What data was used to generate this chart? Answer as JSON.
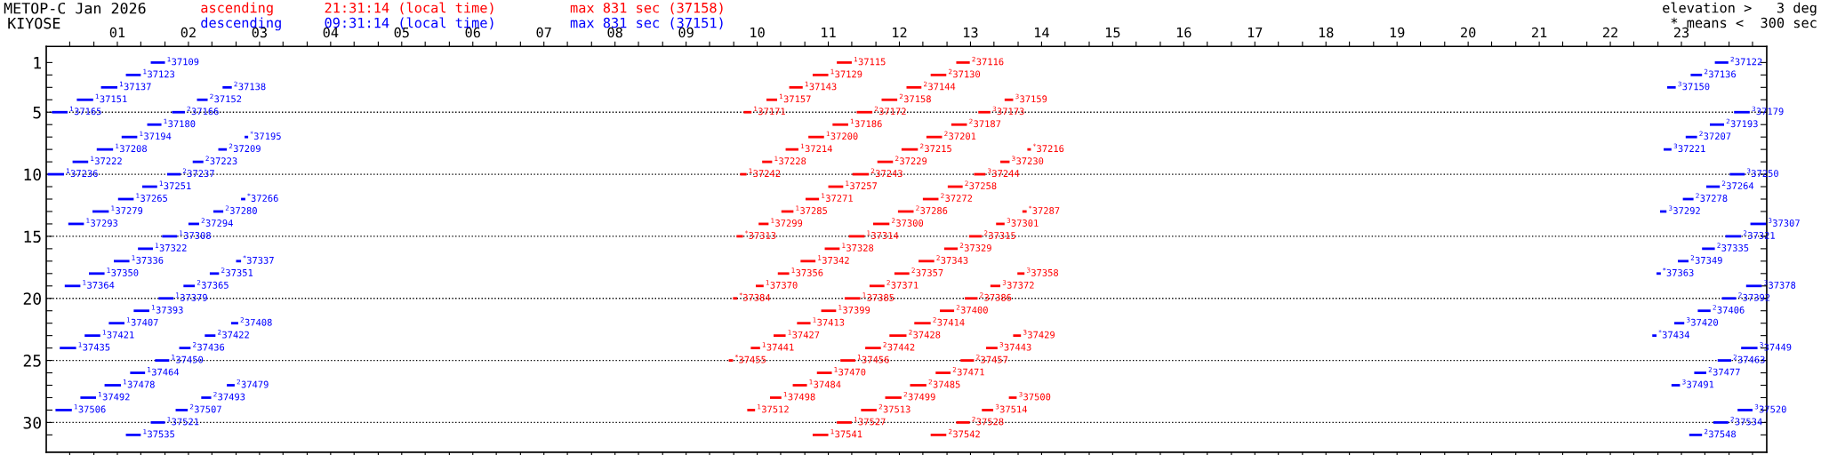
{
  "chart_data": {
    "type": "bar",
    "orientation": "horizontal",
    "title": "METOP-C Jan 2026",
    "subtitle": "KIYOSE",
    "legend": false,
    "grid": false,
    "xlim": [
      0,
      24.2
    ],
    "ylim": [
      32.4,
      -0.3
    ],
    "xticks": [
      {
        "value": 0.33,
        "label": null
      },
      {
        "value": 0.67,
        "label": null
      },
      {
        "value": 1,
        "label": "01"
      },
      {
        "value": 1.33,
        "label": null
      },
      {
        "value": 1.67,
        "label": null
      },
      {
        "value": 2,
        "label": "02"
      },
      {
        "value": 2.33,
        "label": null
      },
      {
        "value": 2.67,
        "label": null
      },
      {
        "value": 3,
        "label": "03"
      },
      {
        "value": 3.33,
        "label": null
      },
      {
        "value": 3.67,
        "label": null
      },
      {
        "value": 4,
        "label": "04"
      },
      {
        "value": 4.33,
        "label": null
      },
      {
        "value": 4.67,
        "label": null
      },
      {
        "value": 5,
        "label": "05"
      },
      {
        "value": 5.33,
        "label": null
      },
      {
        "value": 5.67,
        "label": null
      },
      {
        "value": 6,
        "label": "06"
      },
      {
        "value": 6.33,
        "label": null
      },
      {
        "value": 6.67,
        "label": null
      },
      {
        "value": 7,
        "label": "07"
      },
      {
        "value": 7.33,
        "label": null
      },
      {
        "value": 7.67,
        "label": null
      },
      {
        "value": 8,
        "label": "08"
      },
      {
        "value": 8.33,
        "label": null
      },
      {
        "value": 8.67,
        "label": null
      },
      {
        "value": 9,
        "label": "09"
      },
      {
        "value": 9.33,
        "label": null
      },
      {
        "value": 9.67,
        "label": null
      },
      {
        "value": 10,
        "label": "10"
      },
      {
        "value": 10.33,
        "label": null
      },
      {
        "value": 10.67,
        "label": null
      },
      {
        "value": 11,
        "label": "11"
      },
      {
        "value": 11.33,
        "label": null
      },
      {
        "value": 11.67,
        "label": null
      },
      {
        "value": 12,
        "label": "12"
      },
      {
        "value": 12.33,
        "label": null
      },
      {
        "value": 12.67,
        "label": null
      },
      {
        "value": 13,
        "label": "13"
      },
      {
        "value": 13.33,
        "label": null
      },
      {
        "value": 13.67,
        "label": null
      },
      {
        "value": 14,
        "label": "14"
      },
      {
        "value": 14.33,
        "label": null
      },
      {
        "value": 14.67,
        "label": null
      },
      {
        "value": 15,
        "label": "15"
      },
      {
        "value": 15.33,
        "label": null
      },
      {
        "value": 15.67,
        "label": null
      },
      {
        "value": 16,
        "label": "16"
      },
      {
        "value": 16.33,
        "label": null
      },
      {
        "value": 16.67,
        "label": null
      },
      {
        "value": 17,
        "label": "17"
      },
      {
        "value": 17.33,
        "label": null
      },
      {
        "value": 17.67,
        "label": null
      },
      {
        "value": 18,
        "label": "18"
      },
      {
        "value": 18.33,
        "label": null
      },
      {
        "value": 18.67,
        "label": null
      },
      {
        "value": 19,
        "label": "19"
      },
      {
        "value": 19.33,
        "label": null
      },
      {
        "value": 19.67,
        "label": null
      },
      {
        "value": 20,
        "label": "20"
      },
      {
        "value": 20.33,
        "label": null
      },
      {
        "value": 20.67,
        "label": null
      },
      {
        "value": 21,
        "label": "21"
      },
      {
        "value": 21.33,
        "label": null
      },
      {
        "value": 21.67,
        "label": null
      },
      {
        "value": 22,
        "label": "22"
      },
      {
        "value": 22.33,
        "label": null
      },
      {
        "value": 22.67,
        "label": null
      },
      {
        "value": 23,
        "label": "23"
      },
      {
        "value": 23.33,
        "label": null
      },
      {
        "value": 23.67,
        "label": null
      },
      {
        "value": 24,
        "label": null
      }
    ],
    "yticks": [
      1,
      {
        "value": 2,
        "label": null
      },
      {
        "value": 3,
        "label": null
      },
      {
        "value": 4,
        "label": null
      },
      5,
      {
        "value": 6,
        "label": null
      },
      {
        "value": 7,
        "label": null
      },
      {
        "value": 8,
        "label": null
      },
      {
        "value": 9,
        "label": null
      },
      10,
      {
        "value": 11,
        "label": null
      },
      {
        "value": 12,
        "label": null
      },
      {
        "value": 13,
        "label": null
      },
      {
        "value": 14,
        "label": null
      },
      15,
      {
        "value": 16,
        "label": null
      },
      {
        "value": 17,
        "label": null
      },
      {
        "value": 18,
        "label": null
      },
      {
        "value": 19,
        "label": null
      },
      20,
      {
        "value": 21,
        "label": null
      },
      {
        "value": 22,
        "label": null
      },
      {
        "value": 23,
        "label": null
      },
      {
        "value": 24,
        "label": null
      },
      25,
      {
        "value": 26,
        "label": null
      },
      {
        "value": 27,
        "label": null
      },
      {
        "value": 28,
        "label": null
      },
      {
        "value": 29,
        "label": null
      },
      30,
      {
        "value": 31,
        "label": null
      }
    ],
    "ref_lines": [
      {
        "axis": "y",
        "value": 5,
        "color": "#000000",
        "line_style": "dotted"
      },
      {
        "axis": "y",
        "value": 10,
        "color": "#000000",
        "line_style": "dotted"
      },
      {
        "axis": "y",
        "value": 15,
        "color": "#000000",
        "line_style": "dotted"
      },
      {
        "axis": "y",
        "value": 20,
        "color": "#000000",
        "line_style": "dotted"
      },
      {
        "axis": "y",
        "value": 25,
        "color": "#000000",
        "line_style": "dotted"
      },
      {
        "axis": "y",
        "value": 30,
        "color": "#000000",
        "line_style": "dotted"
      }
    ],
    "series": [
      {
        "name": "ascending",
        "color": "#ff0000",
        "x": [
          1,
          2,
          3,
          4,
          5,
          6,
          7,
          8,
          9,
          10,
          11,
          12,
          13,
          14,
          15,
          16,
          17,
          18,
          19,
          20,
          21,
          22,
          23,
          24,
          25,
          26,
          27,
          28,
          29,
          30,
          31
        ],
        "base": [
          11.12,
          10.78,
          10.45,
          10.13,
          9.81,
          11.06,
          10.72,
          10.4,
          10.07,
          9.76,
          11.0,
          10.68,
          10.34,
          10.02,
          9.71,
          10.95,
          10.61,
          10.29,
          9.98,
          9.66,
          10.9,
          10.56,
          10.23,
          9.91,
          9.6,
          10.84,
          10.5,
          10.18,
          9.86,
          11.12,
          10.78
        ],
        "values": [
          0.21,
          0.22,
          0.19,
          0.15,
          0.11,
          0.22,
          0.22,
          0.18,
          0.14,
          0.09,
          0.21,
          0.19,
          0.17,
          0.14,
          0.09,
          0.21,
          0.21,
          0.16,
          0.11,
          0.06,
          0.21,
          0.19,
          0.17,
          0.13,
          0.06,
          0.21,
          0.2,
          0.16,
          0.11,
          0.21,
          0.22
        ]
      },
      {
        "color": "#ff0000",
        "x": [
          1,
          2,
          3,
          4,
          5,
          6,
          7,
          8,
          9,
          10,
          11,
          12,
          13,
          14,
          15,
          16,
          17,
          18,
          19,
          20,
          21,
          22,
          23,
          24,
          25,
          26,
          27,
          28,
          29,
          30,
          31
        ],
        "base": [
          12.8,
          12.44,
          12.1,
          11.75,
          11.4,
          12.73,
          12.38,
          12.03,
          11.69,
          11.34,
          12.68,
          12.33,
          11.98,
          11.63,
          11.29,
          12.63,
          12.27,
          11.93,
          11.58,
          11.23,
          12.57,
          12.21,
          11.86,
          11.52,
          11.17,
          12.51,
          12.15,
          11.8,
          11.46,
          12.8,
          12.44
        ],
        "values": [
          0.19,
          0.22,
          0.21,
          0.22,
          0.22,
          0.22,
          0.22,
          0.23,
          0.22,
          0.23,
          0.21,
          0.22,
          0.22,
          0.23,
          0.22,
          0.19,
          0.22,
          0.21,
          0.21,
          0.22,
          0.2,
          0.23,
          0.24,
          0.22,
          0.21,
          0.21,
          0.23,
          0.23,
          0.22,
          0.19,
          0.22
        ]
      },
      {
        "color": "#ff0000",
        "x": [
          4,
          5,
          8,
          9,
          10,
          13,
          14,
          15,
          18,
          19,
          20,
          23,
          24,
          25,
          28,
          29
        ],
        "base": [
          13.48,
          13.11,
          13.8,
          13.42,
          13.05,
          13.73,
          13.36,
          12.98,
          13.66,
          13.28,
          12.92,
          13.6,
          13.22,
          12.86,
          13.54,
          13.16
        ],
        "values": [
          0.12,
          0.17,
          0.05,
          0.13,
          0.16,
          0.06,
          0.12,
          0.18,
          0.1,
          0.14,
          0.18,
          0.11,
          0.16,
          0.19,
          0.11,
          0.16
        ]
      },
      {
        "name": "descending",
        "color": "#0000ff",
        "x": [
          1,
          2,
          3,
          4,
          5,
          6,
          7,
          8,
          9,
          10,
          11,
          12,
          13,
          14,
          15,
          16,
          17,
          18,
          19,
          20,
          21,
          22,
          23,
          24,
          25,
          26,
          27,
          28,
          29,
          30,
          31
        ],
        "base": [
          1.47,
          1.12,
          0.77,
          0.43,
          0.08,
          1.42,
          1.06,
          0.71,
          0.37,
          0.02,
          1.35,
          1.01,
          0.65,
          0.31,
          1.63,
          1.29,
          0.95,
          0.6,
          0.26,
          1.58,
          1.23,
          0.88,
          0.54,
          0.19,
          1.53,
          1.18,
          0.82,
          0.48,
          0.13,
          1.47,
          1.12
        ],
        "values": [
          0.2,
          0.21,
          0.23,
          0.23,
          0.22,
          0.2,
          0.22,
          0.23,
          0.22,
          0.23,
          0.21,
          0.22,
          0.23,
          0.22,
          0.21,
          0.21,
          0.22,
          0.22,
          0.22,
          0.21,
          0.22,
          0.22,
          0.22,
          0.23,
          0.2,
          0.21,
          0.23,
          0.22,
          0.23,
          0.2,
          0.21
        ]
      },
      {
        "color": "#0000ff",
        "x": [
          1,
          2,
          3,
          4,
          5,
          6,
          7,
          8,
          9,
          10,
          11,
          12,
          13,
          14,
          15,
          16,
          17,
          18,
          19,
          20,
          21,
          22,
          23,
          24,
          25,
          26,
          27,
          28,
          29,
          30,
          31
        ],
        "base": [
          23.47,
          23.13,
          2.48,
          2.12,
          1.77,
          23.4,
          2.79,
          2.42,
          2.06,
          1.7,
          23.35,
          2.74,
          2.35,
          2.0,
          23.62,
          23.29,
          2.67,
          2.3,
          1.93,
          23.57,
          23.23,
          2.6,
          2.23,
          1.87,
          23.51,
          23.18,
          2.54,
          2.18,
          1.82,
          23.45,
          23.11
        ],
        "values": [
          0.19,
          0.16,
          0.13,
          0.15,
          0.18,
          0.2,
          0.05,
          0.12,
          0.15,
          0.19,
          0.19,
          0.06,
          0.14,
          0.15,
          0.22,
          0.18,
          0.07,
          0.13,
          0.16,
          0.2,
          0.18,
          0.1,
          0.15,
          0.16,
          0.19,
          0.17,
          0.11,
          0.14,
          0.17,
          0.21,
          0.18
        ]
      },
      {
        "color": "#0000ff",
        "x": [
          3,
          5,
          7,
          8,
          10,
          12,
          13,
          14,
          17,
          18,
          19,
          22,
          23,
          24,
          27,
          29
        ],
        "base": [
          22.8,
          23.74,
          23.06,
          22.75,
          23.68,
          23.02,
          22.7,
          23.97,
          22.95,
          22.65,
          23.91,
          22.9,
          22.59,
          23.84,
          22.86,
          23.79
        ],
        "values": [
          0.12,
          0.22,
          0.16,
          0.11,
          0.21,
          0.15,
          0.09,
          0.22,
          0.15,
          0.06,
          0.22,
          0.14,
          0.06,
          0.23,
          0.12,
          0.21
        ]
      }
    ],
    "annotations": [
      "21:31:14 (local time)",
      "max 831 sec (37158)",
      "09:31:14 (local time)",
      "max 831 sec (37151)",
      "elevation >   3 deg",
      "* means <  300 sec",
      {
        "text": "$^{1}$37115",
        "x": 11.33,
        "y": 1
      },
      {
        "text": "$^{2}$37116",
        "x": 12.99,
        "y": 1
      },
      {
        "text": "$^{1}$37129",
        "x": 11.0,
        "y": 2
      },
      {
        "text": "$^{2}$37130",
        "x": 12.66,
        "y": 2
      },
      {
        "text": "$^{1}$37143",
        "x": 10.64,
        "y": 3
      },
      {
        "text": "$^{2}$37144",
        "x": 12.31,
        "y": 3
      },
      {
        "text": "$^{1}$37157",
        "x": 10.28,
        "y": 4
      },
      {
        "text": "$^{2}$37158",
        "x": 11.97,
        "y": 4
      },
      {
        "text": "$^{3}$37159",
        "x": 13.6,
        "y": 4
      },
      {
        "text": "$^{1}$37171",
        "x": 9.92,
        "y": 5
      },
      {
        "text": "$^{2}$37172",
        "x": 11.62,
        "y": 5
      },
      {
        "text": "$^{3}$37173",
        "x": 13.28,
        "y": 5
      },
      {
        "text": "$^{1}$37186",
        "x": 11.28,
        "y": 6
      },
      {
        "text": "$^{2}$37187",
        "x": 12.95,
        "y": 6
      },
      {
        "text": "$^{1}$37200",
        "x": 10.94,
        "y": 7
      },
      {
        "text": "$^{2}$37201",
        "x": 12.6,
        "y": 7
      },
      {
        "text": "$^{1}$37214",
        "x": 10.58,
        "y": 8
      },
      {
        "text": "$^{2}$37215",
        "x": 12.26,
        "y": 8
      },
      {
        "text": "$^{*}$37216",
        "x": 13.85,
        "y": 8
      },
      {
        "text": "$^{1}$37228",
        "x": 10.21,
        "y": 9
      },
      {
        "text": "$^{2}$37229",
        "x": 11.91,
        "y": 9
      },
      {
        "text": "$^{3}$37230",
        "x": 13.55,
        "y": 9
      },
      {
        "text": "$^{1}$37242",
        "x": 9.85,
        "y": 10
      },
      {
        "text": "$^{2}$37243",
        "x": 11.57,
        "y": 10
      },
      {
        "text": "$^{3}$37244",
        "x": 13.21,
        "y": 10
      },
      {
        "text": "$^{1}$37257",
        "x": 11.21,
        "y": 11
      },
      {
        "text": "$^{2}$37258",
        "x": 12.89,
        "y": 11
      },
      {
        "text": "$^{1}$37271",
        "x": 10.87,
        "y": 12
      },
      {
        "text": "$^{2}$37272",
        "x": 12.55,
        "y": 12
      },
      {
        "text": "$^{1}$37285",
        "x": 10.51,
        "y": 13
      },
      {
        "text": "$^{2}$37286",
        "x": 12.2,
        "y": 13
      },
      {
        "text": "$^{*}$37287",
        "x": 13.79,
        "y": 13
      },
      {
        "text": "$^{1}$37299",
        "x": 10.16,
        "y": 14
      },
      {
        "text": "$^{2}$37300",
        "x": 11.86,
        "y": 14
      },
      {
        "text": "$^{3}$37301",
        "x": 13.48,
        "y": 14
      },
      {
        "text": "$^{*}$37313",
        "x": 9.8,
        "y": 15
      },
      {
        "text": "$^{1}$37314",
        "x": 11.51,
        "y": 15
      },
      {
        "text": "$^{2}$37315",
        "x": 13.16,
        "y": 15
      },
      {
        "text": "$^{1}$37328",
        "x": 11.16,
        "y": 16
      },
      {
        "text": "$^{2}$37329",
        "x": 12.82,
        "y": 16
      },
      {
        "text": "$^{1}$37342",
        "x": 10.82,
        "y": 17
      },
      {
        "text": "$^{2}$37343",
        "x": 12.49,
        "y": 17
      },
      {
        "text": "$^{1}$37356",
        "x": 10.45,
        "y": 18
      },
      {
        "text": "$^{2}$37357",
        "x": 12.14,
        "y": 18
      },
      {
        "text": "$^{3}$37358",
        "x": 13.76,
        "y": 18
      },
      {
        "text": "$^{1}$37370",
        "x": 10.09,
        "y": 19
      },
      {
        "text": "$^{2}$37371",
        "x": 11.79,
        "y": 19
      },
      {
        "text": "$^{3}$37372",
        "x": 13.42,
        "y": 19
      },
      {
        "text": "$^{*}$37384",
        "x": 9.72,
        "y": 20
      },
      {
        "text": "$^{1}$37385",
        "x": 11.45,
        "y": 20
      },
      {
        "text": "$^{2}$37386",
        "x": 13.1,
        "y": 20
      },
      {
        "text": "$^{1}$37399",
        "x": 11.11,
        "y": 21
      },
      {
        "text": "$^{2}$37400",
        "x": 12.77,
        "y": 21
      },
      {
        "text": "$^{1}$37413",
        "x": 10.75,
        "y": 22
      },
      {
        "text": "$^{2}$37414",
        "x": 12.44,
        "y": 22
      },
      {
        "text": "$^{1}$37427",
        "x": 10.4,
        "y": 23
      },
      {
        "text": "$^{2}$37428",
        "x": 12.1,
        "y": 23
      },
      {
        "text": "$^{3}$37429",
        "x": 13.71,
        "y": 23
      },
      {
        "text": "$^{1}$37441",
        "x": 10.04,
        "y": 24
      },
      {
        "text": "$^{2}$37442",
        "x": 11.74,
        "y": 24
      },
      {
        "text": "$^{3}$37443",
        "x": 13.38,
        "y": 24
      },
      {
        "text": "$^{*}$37455",
        "x": 9.66,
        "y": 25
      },
      {
        "text": "$^{1}$37456",
        "x": 11.38,
        "y": 25
      },
      {
        "text": "$^{2}$37457",
        "x": 13.05,
        "y": 25
      },
      {
        "text": "$^{1}$37470",
        "x": 11.05,
        "y": 26
      },
      {
        "text": "$^{2}$37471",
        "x": 12.72,
        "y": 26
      },
      {
        "text": "$^{1}$37484",
        "x": 10.7,
        "y": 27
      },
      {
        "text": "$^{2}$37485",
        "x": 12.38,
        "y": 27
      },
      {
        "text": "$^{1}$37498",
        "x": 10.34,
        "y": 28
      },
      {
        "text": "$^{2}$37499",
        "x": 12.03,
        "y": 28
      },
      {
        "text": "$^{3}$37500",
        "x": 13.65,
        "y": 28
      },
      {
        "text": "$^{1}$37512",
        "x": 9.97,
        "y": 29
      },
      {
        "text": "$^{2}$37513",
        "x": 11.68,
        "y": 29
      },
      {
        "text": "$^{3}$37514",
        "x": 13.32,
        "y": 29
      },
      {
        "text": "$^{1}$37527",
        "x": 11.33,
        "y": 30
      },
      {
        "text": "$^{2}$37528",
        "x": 12.99,
        "y": 30
      },
      {
        "text": "$^{1}$37541",
        "x": 11.0,
        "y": 31
      },
      {
        "text": "$^{2}$37542",
        "x": 12.66,
        "y": 31
      },
      {
        "text": "$^{1}$37109",
        "x": 1.67,
        "y": 1
      },
      {
        "text": "$^{2}$37122",
        "x": 23.66,
        "y": 1
      },
      {
        "text": "$^{1}$37123",
        "x": 1.33,
        "y": 2
      },
      {
        "text": "$^{2}$37136",
        "x": 23.29,
        "y": 2
      },
      {
        "text": "$^{1}$37137",
        "x": 1.0,
        "y": 3
      },
      {
        "text": "$^{2}$37138",
        "x": 2.61,
        "y": 3
      },
      {
        "text": "$^{3}$37150",
        "x": 22.92,
        "y": 3
      },
      {
        "text": "$^{1}$37151",
        "x": 0.66,
        "y": 4
      },
      {
        "text": "$^{2}$37152",
        "x": 2.27,
        "y": 4
      },
      {
        "text": "$^{1}$37165",
        "x": 0.3,
        "y": 5
      },
      {
        "text": "$^{2}$37166",
        "x": 1.95,
        "y": 5
      },
      {
        "text": "$^{3}$37179",
        "x": 23.96,
        "y": 5
      },
      {
        "text": "$^{1}$37180",
        "x": 1.62,
        "y": 6
      },
      {
        "text": "$^{2}$37193",
        "x": 23.6,
        "y": 6
      },
      {
        "text": "$^{1}$37194",
        "x": 1.28,
        "y": 7
      },
      {
        "text": "$^{*}$37195",
        "x": 2.84,
        "y": 7
      },
      {
        "text": "$^{2}$37207",
        "x": 23.22,
        "y": 7
      },
      {
        "text": "$^{1}$37208",
        "x": 0.94,
        "y": 8
      },
      {
        "text": "$^{2}$37209",
        "x": 2.54,
        "y": 8
      },
      {
        "text": "$^{3}$37221",
        "x": 22.86,
        "y": 8
      },
      {
        "text": "$^{1}$37222",
        "x": 0.59,
        "y": 9
      },
      {
        "text": "$^{2}$37223",
        "x": 2.21,
        "y": 9
      },
      {
        "text": "$^{1}$37236",
        "x": 0.25,
        "y": 10
      },
      {
        "text": "$^{2}$37237",
        "x": 1.89,
        "y": 10
      },
      {
        "text": "$^{3}$37250",
        "x": 23.89,
        "y": 10
      },
      {
        "text": "$^{1}$37251",
        "x": 1.56,
        "y": 11
      },
      {
        "text": "$^{2}$37264",
        "x": 23.54,
        "y": 11
      },
      {
        "text": "$^{1}$37265",
        "x": 1.23,
        "y": 12
      },
      {
        "text": "$^{*}$37266",
        "x": 2.8,
        "y": 12
      },
      {
        "text": "$^{2}$37278",
        "x": 23.17,
        "y": 12
      },
      {
        "text": "$^{1}$37279",
        "x": 0.88,
        "y": 13
      },
      {
        "text": "$^{2}$37280",
        "x": 2.49,
        "y": 13
      },
      {
        "text": "$^{3}$37292",
        "x": 22.79,
        "y": 13
      },
      {
        "text": "$^{1}$37293",
        "x": 0.53,
        "y": 14
      },
      {
        "text": "$^{2}$37294",
        "x": 2.15,
        "y": 14
      },
      {
        "text": "$^{3}$37307",
        "x": 24.19,
        "y": 14
      },
      {
        "text": "$^{1}$37308",
        "x": 1.84,
        "y": 15
      },
      {
        "text": "$^{2}$37321",
        "x": 23.84,
        "y": 15
      },
      {
        "text": "$^{1}$37322",
        "x": 1.5,
        "y": 16
      },
      {
        "text": "$^{2}$37335",
        "x": 23.47,
        "y": 16
      },
      {
        "text": "$^{1}$37336",
        "x": 1.17,
        "y": 17
      },
      {
        "text": "$^{*}$37337",
        "x": 2.74,
        "y": 17
      },
      {
        "text": "$^{2}$37349",
        "x": 23.1,
        "y": 17
      },
      {
        "text": "$^{1}$37350",
        "x": 0.82,
        "y": 18
      },
      {
        "text": "$^{2}$37351",
        "x": 2.43,
        "y": 18
      },
      {
        "text": "$^{*}$37363",
        "x": 22.71,
        "y": 18
      },
      {
        "text": "$^{1}$37364",
        "x": 0.48,
        "y": 19
      },
      {
        "text": "$^{2}$37365",
        "x": 2.09,
        "y": 19
      },
      {
        "text": "$^{3}$37378",
        "x": 24.13,
        "y": 19
      },
      {
        "text": "$^{1}$37379",
        "x": 1.79,
        "y": 20
      },
      {
        "text": "$^{2}$37392",
        "x": 23.77,
        "y": 20
      },
      {
        "text": "$^{1}$37393",
        "x": 1.45,
        "y": 21
      },
      {
        "text": "$^{2}$37406",
        "x": 23.41,
        "y": 21
      },
      {
        "text": "$^{1}$37407",
        "x": 1.1,
        "y": 22
      },
      {
        "text": "$^{2}$37408",
        "x": 2.7,
        "y": 22
      },
      {
        "text": "$^{3}$37420",
        "x": 23.04,
        "y": 22
      },
      {
        "text": "$^{1}$37421",
        "x": 0.76,
        "y": 23
      },
      {
        "text": "$^{2}$37422",
        "x": 2.38,
        "y": 23
      },
      {
        "text": "$^{*}$37434",
        "x": 22.65,
        "y": 23
      },
      {
        "text": "$^{1}$37435",
        "x": 0.42,
        "y": 24
      },
      {
        "text": "$^{2}$37436",
        "x": 2.03,
        "y": 24
      },
      {
        "text": "$^{3}$37449",
        "x": 24.07,
        "y": 24
      },
      {
        "text": "$^{1}$37450",
        "x": 1.73,
        "y": 25
      },
      {
        "text": "$^{2}$37463",
        "x": 23.7,
        "y": 25
      },
      {
        "text": "$^{1}$37464",
        "x": 1.39,
        "y": 26
      },
      {
        "text": "$^{2}$37477",
        "x": 23.35,
        "y": 26
      },
      {
        "text": "$^{1}$37478",
        "x": 1.05,
        "y": 27
      },
      {
        "text": "$^{2}$37479",
        "x": 2.65,
        "y": 27
      },
      {
        "text": "$^{3}$37491",
        "x": 22.98,
        "y": 27
      },
      {
        "text": "$^{1}$37492",
        "x": 0.7,
        "y": 28
      },
      {
        "text": "$^{2}$37493",
        "x": 2.32,
        "y": 28
      },
      {
        "text": "$^{1}$37506",
        "x": 0.36,
        "y": 29
      },
      {
        "text": "$^{2}$37507",
        "x": 1.99,
        "y": 29
      },
      {
        "text": "$^{3}$37520",
        "x": 24.0,
        "y": 29
      },
      {
        "text": "$^{1}$37521",
        "x": 1.67,
        "y": 30
      },
      {
        "text": "$^{2}$37534",
        "x": 23.66,
        "y": 30
      },
      {
        "text": "$^{1}$37535",
        "x": 1.33,
        "y": 31
      },
      {
        "text": "$^{2}$37548",
        "x": 23.29,
        "y": 31
      }
    ]
  }
}
